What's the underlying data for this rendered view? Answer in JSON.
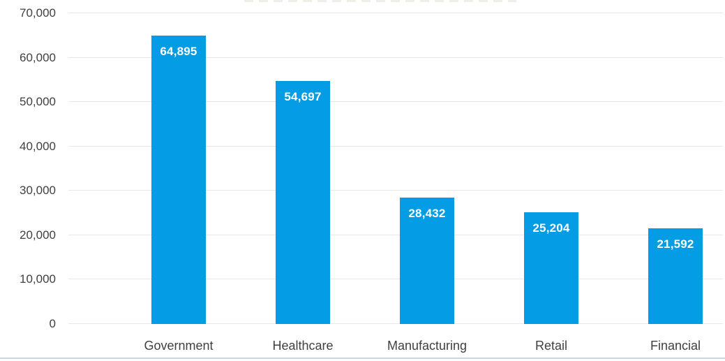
{
  "chart_data": {
    "type": "bar",
    "title": "",
    "xlabel": "",
    "ylabel": "",
    "categories": [
      "Government",
      "Healthcare",
      "Manufacturing",
      "Retail",
      "Financial"
    ],
    "values": [
      64895,
      54697,
      28432,
      25204,
      21592
    ],
    "value_labels": [
      "64,895",
      "54,697",
      "28,432",
      "25,204",
      "21,592"
    ],
    "ytick_values": [
      0,
      10000,
      20000,
      30000,
      40000,
      50000,
      60000,
      70000
    ],
    "ytick_labels": [
      "0",
      "10,000",
      "20,000",
      "30,000",
      "40,000",
      "50,000",
      "60,000",
      "70,000"
    ],
    "ylim": [
      0,
      70000
    ],
    "grid": true,
    "legend": false,
    "colors": {
      "bar": "#049ce4",
      "value_label": "#ffffff",
      "axis_text": "#404040",
      "gridline": "#e7e7e7",
      "background": "#ffffff",
      "bottom_rule": "#ccd6db"
    }
  }
}
